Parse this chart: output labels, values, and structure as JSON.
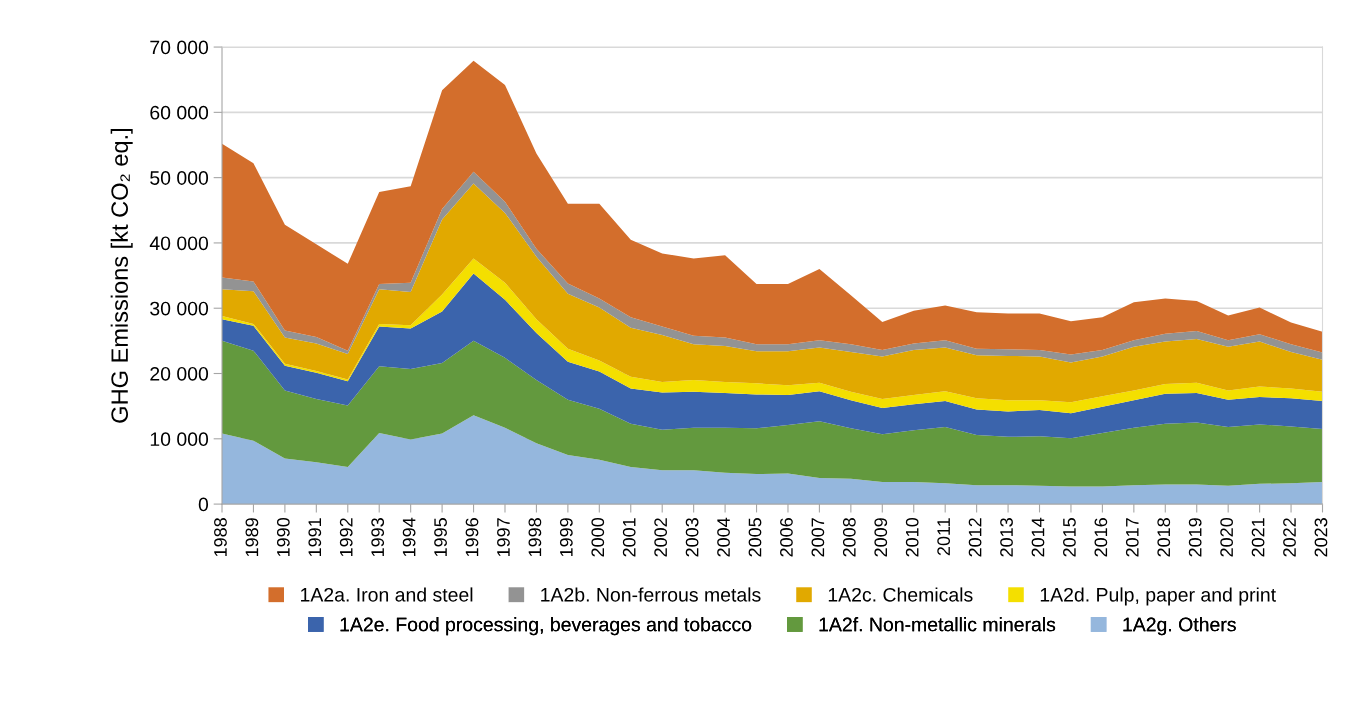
{
  "chart_data": {
    "type": "area",
    "stacked": true,
    "ylabel": "GHG Emissions [kt CO₂ eq.]",
    "categories": [
      "1988",
      "1989",
      "1990",
      "1991",
      "1992",
      "1993",
      "1994",
      "1995",
      "1996",
      "1997",
      "1998",
      "1999",
      "2000",
      "2001",
      "2002",
      "2003",
      "2004",
      "2005",
      "2006",
      "2007",
      "2008",
      "2009",
      "2010",
      "2011",
      "2012",
      "2013",
      "2014",
      "2015",
      "2016",
      "2017",
      "2018",
      "2019",
      "2020",
      "2021",
      "2022",
      "2023"
    ],
    "ylim": [
      0,
      70000
    ],
    "yticks": [
      0,
      {
        "value": 10000,
        "label": "10 000"
      },
      {
        "value": 20000,
        "label": "20 000"
      },
      {
        "value": 30000,
        "label": "30 000"
      },
      {
        "value": 40000,
        "label": "40 000"
      },
      {
        "value": 50000,
        "label": "50 000"
      },
      {
        "value": 60000,
        "label": "60 000"
      },
      {
        "value": 70000,
        "label": "70 000"
      }
    ],
    "grid": "y",
    "legend": "bottom",
    "series": [
      {
        "name": "1A2g. Others",
        "color": "#95b7dd",
        "values": [
          10800,
          9700,
          7000,
          6400,
          5700,
          10900,
          9900,
          10800,
          13600,
          11700,
          9300,
          7500,
          6800,
          5700,
          5200,
          5200,
          4800,
          4600,
          4700,
          4000,
          3900,
          3400,
          3400,
          3200,
          2900,
          2900,
          2800,
          2700,
          2700,
          2900,
          3000,
          3000,
          2800,
          3100,
          3200,
          3400
        ]
      },
      {
        "name": "1A2f. Non-metallic minerals",
        "color": "#63993e",
        "values": [
          14200,
          13800,
          10400,
          9700,
          9400,
          10200,
          10800,
          10800,
          11400,
          10700,
          9700,
          8500,
          7800,
          6600,
          6200,
          6500,
          6900,
          7000,
          7400,
          8700,
          7700,
          7300,
          7900,
          8600,
          7700,
          7400,
          7600,
          7400,
          8200,
          8800,
          9300,
          9500,
          9000,
          9100,
          8700,
          8100
        ]
      },
      {
        "name": "1A2e. Food processing, beverages and tobacco",
        "color": "#3b64ac",
        "values": [
          3300,
          3800,
          3800,
          4000,
          3700,
          6100,
          6200,
          7900,
          10300,
          8900,
          7200,
          5800,
          5700,
          5400,
          5700,
          5500,
          5300,
          5200,
          4600,
          4600,
          4300,
          4000,
          4000,
          4000,
          3900,
          3900,
          4000,
          3800,
          4000,
          4200,
          4600,
          4500,
          4200,
          4200,
          4300,
          4300
        ]
      },
      {
        "name": "1A2d. Pulp, paper and print",
        "color": "#f4df00",
        "values": [
          500,
          300,
          300,
          300,
          300,
          400,
          500,
          2600,
          2300,
          2600,
          2100,
          2000,
          1700,
          1800,
          1600,
          1800,
          1700,
          1700,
          1500,
          1300,
          1300,
          1400,
          1400,
          1500,
          1700,
          1700,
          1500,
          1700,
          1600,
          1500,
          1500,
          1600,
          1400,
          1600,
          1500,
          1400
        ]
      },
      {
        "name": "1A2c. Chemicals",
        "color": "#e1a900",
        "values": [
          4100,
          5000,
          4000,
          4200,
          3900,
          5300,
          5100,
          11500,
          11500,
          10700,
          9600,
          8400,
          8100,
          7500,
          7200,
          5500,
          5500,
          4900,
          5200,
          5400,
          6100,
          6500,
          6900,
          6700,
          6600,
          6800,
          6700,
          6100,
          6100,
          6700,
          6500,
          6700,
          6700,
          6900,
          5600,
          4900
        ]
      },
      {
        "name": "1A2b. Non-ferrous metals",
        "color": "#939393",
        "values": [
          1800,
          1500,
          1100,
          1000,
          500,
          800,
          1400,
          1600,
          1800,
          1700,
          1200,
          1600,
          1400,
          1600,
          1300,
          1300,
          1300,
          1100,
          1100,
          1100,
          1200,
          1000,
          1000,
          1100,
          1000,
          1000,
          1000,
          1200,
          1000,
          1000,
          1200,
          1200,
          1000,
          1100,
          1200,
          1100
        ]
      },
      {
        "name": "1A2a. Iron and steel",
        "color": "#d36e2c",
        "values": [
          20500,
          18100,
          16200,
          14200,
          13300,
          14100,
          14800,
          18200,
          17000,
          17900,
          14600,
          12200,
          14500,
          11900,
          11200,
          11800,
          12600,
          9200,
          9200,
          10900,
          7500,
          4300,
          5000,
          5300,
          5600,
          5500,
          5600,
          5100,
          5000,
          5800,
          5400,
          4600,
          3800,
          4100,
          3300,
          3200
        ]
      }
    ]
  }
}
